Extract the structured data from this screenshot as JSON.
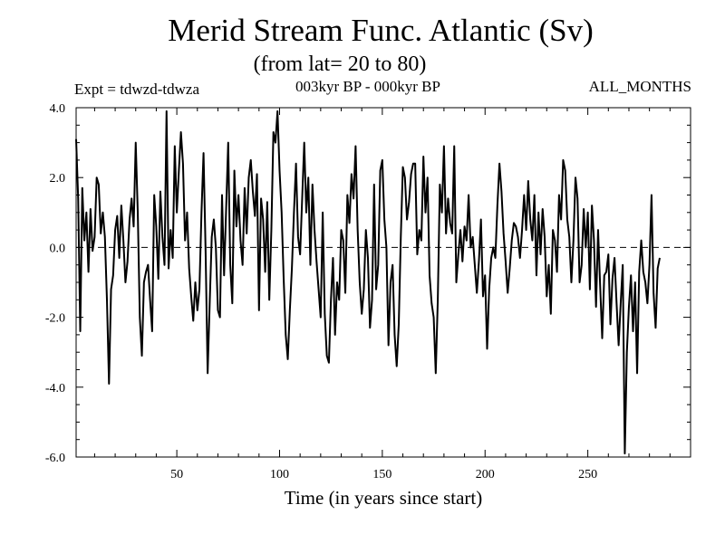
{
  "chart_data": {
    "type": "line",
    "title": "Merid Stream Func. Atlantic (Sv)",
    "subtitle": "(from lat= 20 to 80)",
    "annotations": {
      "experiment": "Expt = tdwzd-tdwza",
      "period": "003kyr BP - 000kyr BP",
      "months": "ALL_MONTHS"
    },
    "xlabel": "Time (in years since start)",
    "ylabel": "",
    "xlim": [
      1,
      300
    ],
    "ylim": [
      -6.0,
      4.0
    ],
    "xticks": [
      50,
      100,
      150,
      200,
      250
    ],
    "xtick_labels": [
      "50",
      "100",
      "150",
      "200",
      "250"
    ],
    "yticks": [
      -6.0,
      -4.0,
      -2.0,
      0.0,
      2.0,
      4.0
    ],
    "ytick_labels": [
      "-6.0",
      "-4.0",
      "-2.0",
      "0.0",
      "2.0",
      "4.0"
    ],
    "reference_line": {
      "y": 0.0,
      "style": "dashed"
    },
    "grid": false,
    "series": [
      {
        "x_start": 1,
        "x_step": 1,
        "values": [
          3.1,
          1.4,
          -2.4,
          1.7,
          0.2,
          1.0,
          -0.7,
          1.1,
          -0.1,
          0.3,
          2.0,
          1.8,
          0.4,
          1.0,
          0.3,
          -1.5,
          -3.9,
          -1.2,
          -0.8,
          0.5,
          0.9,
          -0.3,
          1.2,
          0.2,
          -1.0,
          -0.4,
          0.8,
          1.4,
          0.6,
          3.0,
          1.0,
          -2.0,
          -3.1,
          -1.0,
          -0.7,
          -0.5,
          -1.5,
          -2.4,
          1.5,
          0.6,
          -0.9,
          1.6,
          0.3,
          -0.5,
          3.9,
          -0.6,
          0.5,
          -0.3,
          2.9,
          1.0,
          2.2,
          3.3,
          2.4,
          0.2,
          1.0,
          -0.6,
          -1.4,
          -2.1,
          -1.0,
          -1.8,
          -1.2,
          1.0,
          2.7,
          -0.1,
          -3.6,
          -1.6,
          0.3,
          0.8,
          0.0,
          -1.8,
          -2.0,
          1.5,
          -0.8,
          1.1,
          3.0,
          -0.5,
          -1.6,
          2.2,
          0.6,
          1.5,
          0.2,
          -0.5,
          1.7,
          0.4,
          2.0,
          2.5,
          1.6,
          0.9,
          2.1,
          -1.8,
          1.4,
          0.8,
          -0.7,
          1.3,
          -1.5,
          0.5,
          3.3,
          3.0,
          3.9,
          2.2,
          1.0,
          -0.9,
          -2.5,
          -3.2,
          -1.8,
          -0.6,
          1.0,
          2.4,
          0.3,
          -0.2,
          1.4,
          3.0,
          1.0,
          2.0,
          -0.5,
          1.8,
          0.5,
          -0.4,
          -1.2,
          -2.0,
          1.0,
          -1.9,
          -3.1,
          -3.3,
          -1.5,
          -0.3,
          -2.5,
          -1.0,
          -1.5,
          0.5,
          0.2,
          -1.3,
          1.5,
          0.7,
          2.1,
          1.4,
          2.9,
          0.5,
          -1.0,
          -1.9,
          -1.2,
          0.5,
          -0.3,
          -2.3,
          -1.5,
          1.8,
          -1.2,
          -0.5,
          2.2,
          2.5,
          0.8,
          0.0,
          -2.8,
          -1.0,
          -0.5,
          -2.5,
          -3.4,
          -2.2,
          0.3,
          2.3,
          2.0,
          0.8,
          1.3,
          2.1,
          2.4,
          2.4,
          -0.2,
          0.5,
          0.2,
          2.6,
          1.0,
          2.0,
          -0.8,
          -1.6,
          -2.0,
          -3.6,
          -1.5,
          1.8,
          1.0,
          2.9,
          0.4,
          1.4,
          0.7,
          0.4,
          2.9,
          -1.0,
          -0.2,
          0.5,
          -0.4,
          0.6,
          0.2,
          1.5,
          0.0,
          0.3,
          -0.5,
          -1.3,
          -0.4,
          0.8,
          -1.4,
          -0.8,
          -2.9,
          -1.2,
          -0.3,
          0.0,
          -0.3,
          1.2,
          2.4,
          1.6,
          0.4,
          -0.4,
          -1.3,
          -0.6,
          0.2,
          0.7,
          0.6,
          0.3,
          -0.3,
          0.5,
          1.5,
          0.5,
          1.9,
          0.8,
          0.2,
          1.5,
          -0.8,
          1.0,
          -0.2,
          1.1,
          0.3,
          -1.4,
          -0.5,
          -1.9,
          0.5,
          0.2,
          -0.7,
          1.5,
          0.8,
          2.5,
          2.2,
          0.8,
          0.3,
          -1.0,
          0.2,
          2.0,
          1.4,
          -1.0,
          -0.5,
          1.1,
          0.0,
          1.0,
          -1.2,
          1.2,
          0.2,
          -1.7,
          0.5,
          -1.1,
          -2.6,
          -0.8,
          -0.7,
          -0.2,
          -2.2,
          -0.9,
          -0.3,
          -1.6,
          -2.8,
          -1.6,
          -0.5,
          -5.9,
          -3.0,
          -1.7,
          -0.8,
          -2.4,
          -1.0,
          -3.6,
          -0.7,
          0.2,
          -0.7,
          -1.0,
          -1.6,
          -0.5,
          1.5,
          -1.3,
          -2.3,
          -0.6,
          -0.3
        ]
      }
    ]
  }
}
